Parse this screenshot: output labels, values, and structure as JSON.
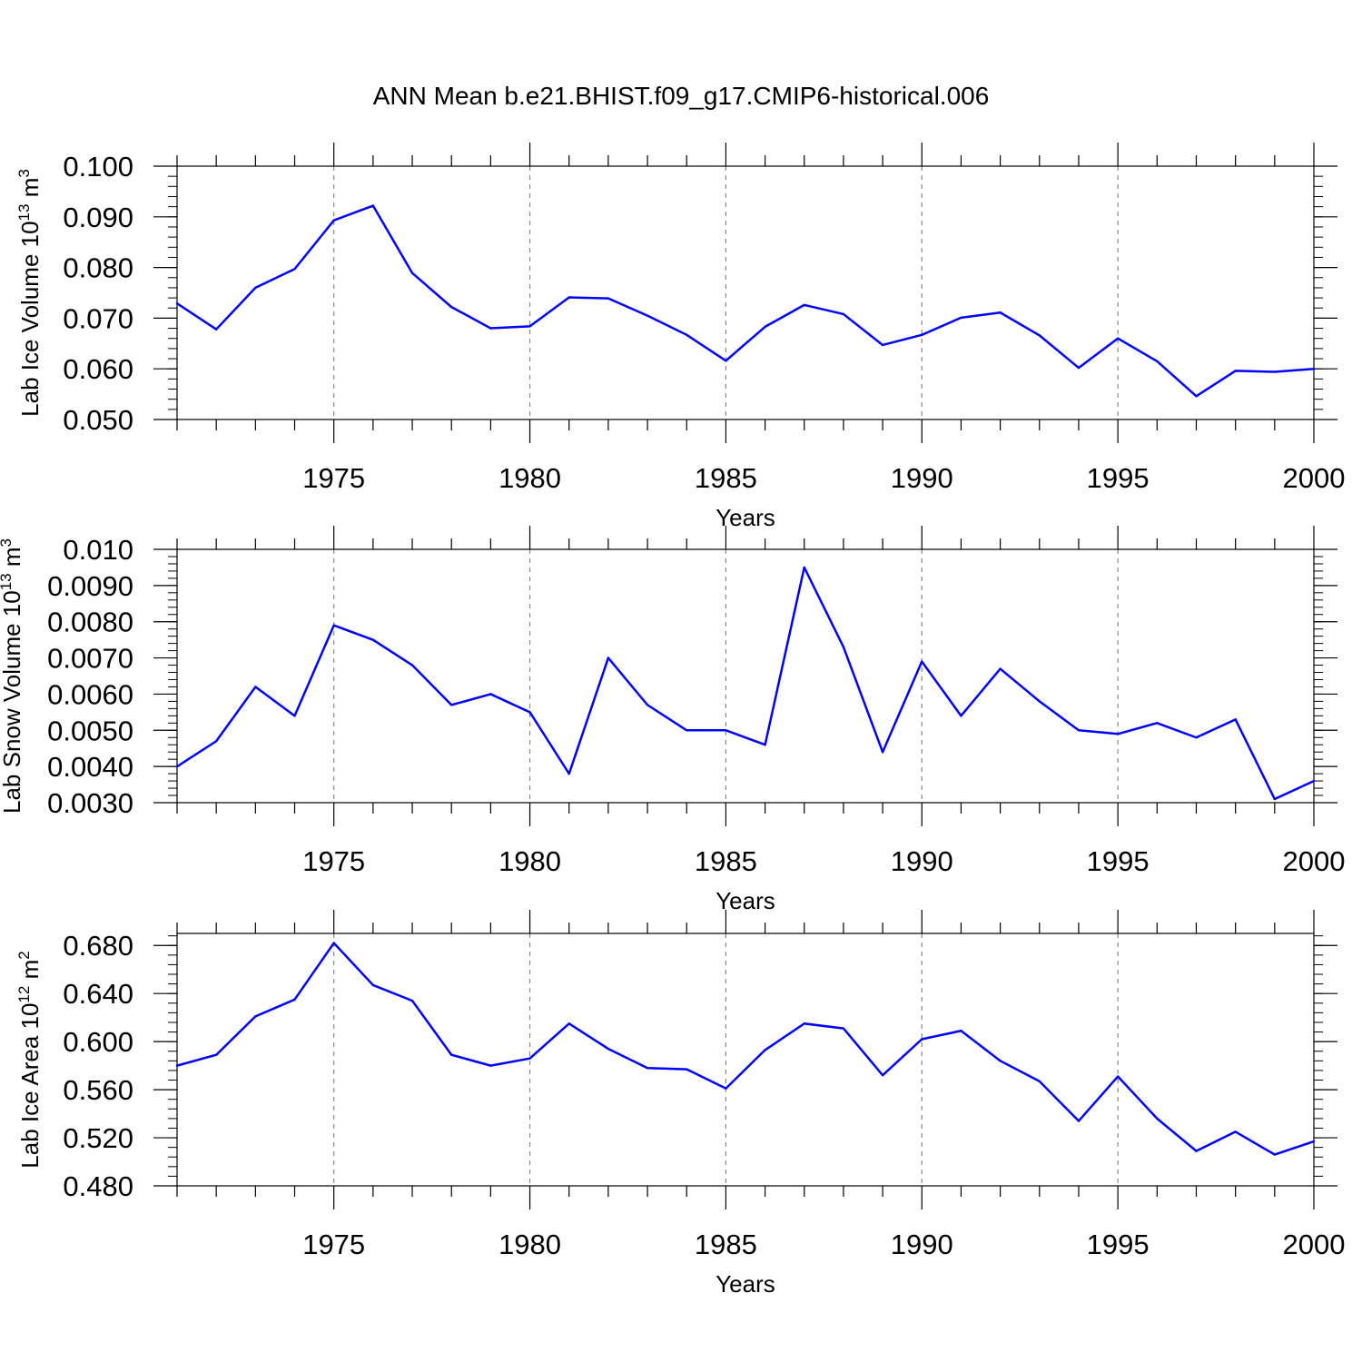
{
  "figure_title": "ANN Mean b.e21.BHIST.f09_g17.CMIP6-historical.006",
  "line_color": "#0000ff",
  "chart_data": [
    {
      "type": "line",
      "ylabel": "Lab Ice Volume 10",
      "ylabel_exp": "13",
      "ylabel_unit": " m",
      "ylabel_unit_exp": "3",
      "xlabel": "Years",
      "xlim": [
        1971,
        2000
      ],
      "ylim": [
        0.05,
        0.1
      ],
      "yticks": [
        0.05,
        0.06,
        0.07,
        0.08,
        0.09,
        0.1
      ],
      "ytick_labels": [
        "0.050",
        "0.060",
        "0.070",
        "0.080",
        "0.090",
        "0.100"
      ],
      "xticks": [
        1975,
        1980,
        1985,
        1990,
        1995,
        2000
      ],
      "xtick_labels": [
        "1975",
        "1980",
        "1985",
        "1990",
        "1995",
        "2000"
      ],
      "x": [
        1971,
        1972,
        1973,
        1974,
        1975,
        1976,
        1977,
        1978,
        1979,
        1980,
        1981,
        1982,
        1983,
        1984,
        1985,
        1986,
        1987,
        1988,
        1989,
        1990,
        1991,
        1992,
        1993,
        1994,
        1995,
        1996,
        1997,
        1998,
        1999,
        2000
      ],
      "values": [
        0.0729,
        0.0678,
        0.076,
        0.0797,
        0.0893,
        0.0922,
        0.0789,
        0.0722,
        0.068,
        0.0684,
        0.0741,
        0.0739,
        0.0705,
        0.0667,
        0.0616,
        0.0683,
        0.0726,
        0.0708,
        0.0647,
        0.0667,
        0.0701,
        0.0711,
        0.0666,
        0.0602,
        0.066,
        0.0615,
        0.0546,
        0.0596,
        0.0594,
        0.06
      ]
    },
    {
      "type": "line",
      "ylabel": "Lab Snow Volume 10",
      "ylabel_exp": "13",
      "ylabel_unit": " m",
      "ylabel_unit_exp": "3",
      "xlabel": "Years",
      "xlim": [
        1971,
        2000
      ],
      "ylim": [
        0.003,
        0.01
      ],
      "yticks": [
        0.003,
        0.004,
        0.005,
        0.006,
        0.007,
        0.008,
        0.009,
        0.01
      ],
      "ytick_labels": [
        "0.0030",
        "0.0040",
        "0.0050",
        "0.0060",
        "0.0070",
        "0.0080",
        "0.0090",
        "0.010"
      ],
      "xticks": [
        1975,
        1980,
        1985,
        1990,
        1995,
        2000
      ],
      "xtick_labels": [
        "1975",
        "1980",
        "1985",
        "1990",
        "1995",
        "2000"
      ],
      "x": [
        1971,
        1972,
        1973,
        1974,
        1975,
        1976,
        1977,
        1978,
        1979,
        1980,
        1981,
        1982,
        1983,
        1984,
        1985,
        1986,
        1987,
        1988,
        1989,
        1990,
        1991,
        1992,
        1993,
        1994,
        1995,
        1996,
        1997,
        1998,
        1999,
        2000
      ],
      "values": [
        0.004,
        0.0047,
        0.0062,
        0.0054,
        0.0079,
        0.0075,
        0.0068,
        0.0057,
        0.006,
        0.0055,
        0.0038,
        0.007,
        0.0057,
        0.005,
        0.005,
        0.0046,
        0.0095,
        0.0073,
        0.0044,
        0.0069,
        0.0054,
        0.0067,
        0.0058,
        0.005,
        0.0049,
        0.0052,
        0.0048,
        0.0053,
        0.0031,
        0.0036
      ]
    },
    {
      "type": "line",
      "ylabel": "Lab Ice Area 10",
      "ylabel_exp": "12",
      "ylabel_unit": " m",
      "ylabel_unit_exp": "2",
      "xlabel": "Years",
      "xlim": [
        1971,
        2000
      ],
      "ylim": [
        0.48,
        0.69
      ],
      "yticks": [
        0.48,
        0.52,
        0.56,
        0.6,
        0.64,
        0.68
      ],
      "ytick_labels": [
        "0.480",
        "0.520",
        "0.560",
        "0.600",
        "0.640",
        "0.680"
      ],
      "xticks": [
        1975,
        1980,
        1985,
        1990,
        1995,
        2000
      ],
      "xtick_labels": [
        "1975",
        "1980",
        "1985",
        "1990",
        "1995",
        "2000"
      ],
      "x": [
        1971,
        1972,
        1973,
        1974,
        1975,
        1976,
        1977,
        1978,
        1979,
        1980,
        1981,
        1982,
        1983,
        1984,
        1985,
        1986,
        1987,
        1988,
        1989,
        1990,
        1991,
        1992,
        1993,
        1994,
        1995,
        1996,
        1997,
        1998,
        1999,
        2000
      ],
      "values": [
        0.58,
        0.589,
        0.621,
        0.635,
        0.682,
        0.647,
        0.634,
        0.589,
        0.58,
        0.586,
        0.615,
        0.594,
        0.578,
        0.577,
        0.561,
        0.593,
        0.615,
        0.611,
        0.572,
        0.602,
        0.609,
        0.584,
        0.567,
        0.534,
        0.571,
        0.536,
        0.509,
        0.525,
        0.506,
        0.517
      ]
    }
  ]
}
